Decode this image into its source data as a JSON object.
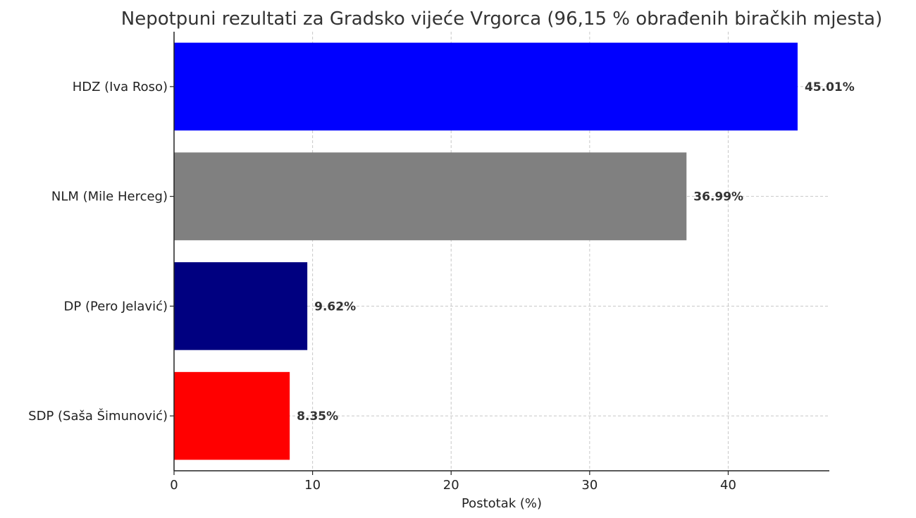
{
  "chart_data": {
    "type": "bar",
    "orientation": "horizontal",
    "title": "Nepotpuni rezultati za Gradsko vijeće Vrgorca (96,15 % obrađenih biračkih mjesta)",
    "xlabel": "Postotak (%)",
    "ylabel": "",
    "categories": [
      "HDZ (Iva Roso)",
      "NLM (Mile Herceg)",
      "DP (Pero Jelavić)",
      "SDP (Saša Šimunović)"
    ],
    "values": [
      45.01,
      36.99,
      9.62,
      8.35
    ],
    "value_labels": [
      "45.01%",
      "36.99%",
      "9.62%",
      "8.35%"
    ],
    "colors": [
      "#0000ff",
      "#808080",
      "#000080",
      "#ff0000"
    ],
    "xlim": [
      0,
      47.3
    ],
    "xticks": [
      0,
      10,
      20,
      30,
      40
    ],
    "xtick_labels": [
      "0",
      "10",
      "20",
      "30",
      "40"
    ],
    "grid": true,
    "legend": "none"
  }
}
